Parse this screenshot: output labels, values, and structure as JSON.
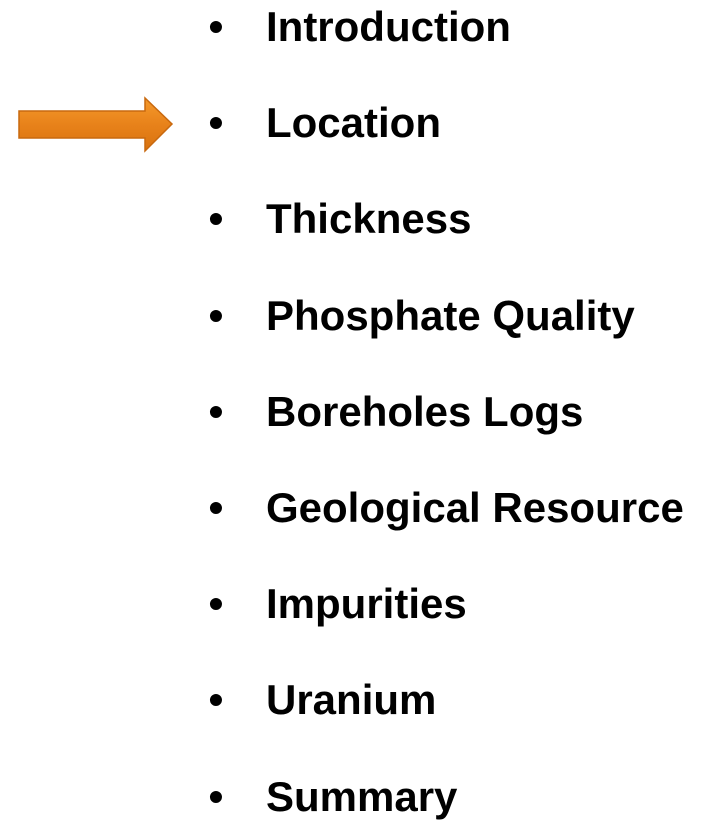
{
  "list": {
    "items": [
      "Introduction",
      "Location",
      "Thickness",
      "Phosphate Quality",
      "Boreholes Logs",
      "Geological Resource",
      "Impurities",
      "Uranium",
      "Summary"
    ]
  }
}
